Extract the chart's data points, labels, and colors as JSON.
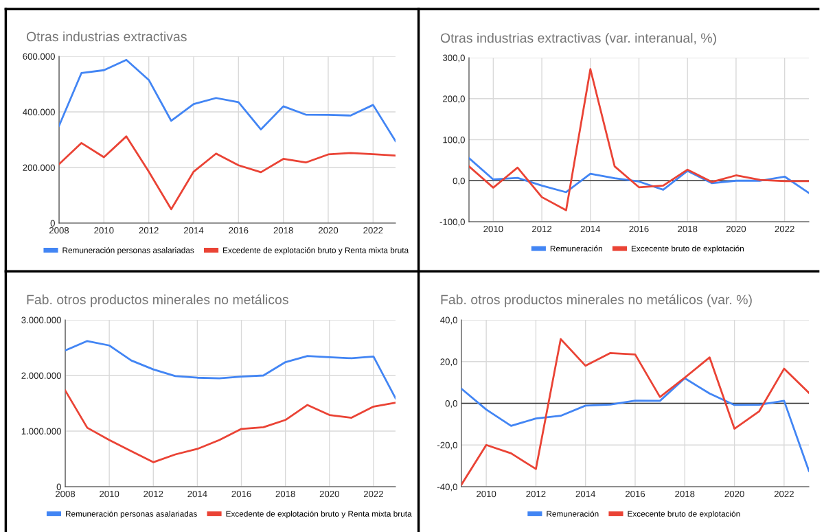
{
  "chart_data": [
    {
      "type": "line",
      "title": "Otras industrias extractivas",
      "x": [
        2008,
        2009,
        2010,
        2011,
        2012,
        2013,
        2014,
        2015,
        2016,
        2017,
        2018,
        2019,
        2020,
        2021,
        2022,
        2023
      ],
      "series": [
        {
          "name": "Remuneración personas asalariadas",
          "color": "#4285f4",
          "values": [
            350000,
            540000,
            550000,
            587000,
            515000,
            368000,
            428000,
            450000,
            435000,
            337000,
            420000,
            390000,
            389000,
            387000,
            425000,
            295000
          ]
        },
        {
          "name": "Excedente de explotación bruto y Renta mixta bruta",
          "color": "#ea4335",
          "values": [
            212000,
            288000,
            237000,
            312000,
            185000,
            50000,
            185000,
            250000,
            208000,
            183000,
            231000,
            218000,
            247000,
            252000,
            248000,
            243000
          ]
        }
      ],
      "xlim": [
        2008,
        2023
      ],
      "xticks": [
        2008,
        2010,
        2012,
        2014,
        2016,
        2018,
        2020,
        2022
      ],
      "ylim": [
        0,
        600000
      ],
      "yticks": [
        0,
        {
          "value": 200000,
          "label": "200.000"
        },
        {
          "value": 400000,
          "label": "400.000"
        },
        {
          "value": 600000,
          "label": "600.000"
        }
      ],
      "grid": true,
      "legend": "bottom"
    },
    {
      "type": "line",
      "title": "Otras industrias extractivas (var. interanual, %)",
      "x": [
        2009,
        2010,
        2011,
        2012,
        2013,
        2014,
        2015,
        2016,
        2017,
        2018,
        2019,
        2020,
        2021,
        2022,
        2023
      ],
      "series": [
        {
          "name": "Remuneración",
          "color": "#4285f4",
          "values": [
            55,
            3,
            7,
            -12,
            -28,
            17,
            6,
            -2,
            -22,
            24,
            -6,
            0,
            0,
            10,
            -30
          ]
        },
        {
          "name": "Excecente bruto de explotación",
          "color": "#ea4335",
          "values": [
            35,
            -17,
            32,
            -40,
            -72,
            272,
            35,
            -16,
            -12,
            27,
            -3,
            13,
            2,
            -1,
            -1
          ]
        }
      ],
      "xlim": [
        2009,
        2023
      ],
      "xticks": [
        2010,
        2012,
        2014,
        2016,
        2018,
        2020,
        2022
      ],
      "ylim": [
        -100,
        300
      ],
      "yticks": [
        {
          "value": -100,
          "label": "-100,0"
        },
        {
          "value": 0,
          "label": "0,0"
        },
        {
          "value": 100,
          "label": "100,0"
        },
        {
          "value": 200,
          "label": "200,0"
        },
        {
          "value": 300,
          "label": "300,0"
        }
      ],
      "ref_lines": [
        {
          "axis": "y",
          "value": 0,
          "color": "#333333"
        }
      ],
      "grid": true,
      "legend": "bottom"
    },
    {
      "type": "line",
      "title": "Fab. otros productos minerales no metálicos",
      "x": [
        2008,
        2009,
        2010,
        2011,
        2012,
        2013,
        2014,
        2015,
        2016,
        2017,
        2018,
        2019,
        2020,
        2021,
        2022,
        2023
      ],
      "series": [
        {
          "name": "Remuneración personas asalariadas",
          "color": "#4285f4",
          "values": [
            2450000,
            2620000,
            2540000,
            2270000,
            2110000,
            1990000,
            1960000,
            1950000,
            1980000,
            2000000,
            2240000,
            2350000,
            2330000,
            2310000,
            2340000,
            1590000
          ]
        },
        {
          "name": "Excedente de explotación bruto y Renta mixta bruta",
          "color": "#ea4335",
          "values": [
            1730000,
            1060000,
            840000,
            640000,
            440000,
            580000,
            680000,
            840000,
            1040000,
            1070000,
            1200000,
            1470000,
            1290000,
            1240000,
            1440000,
            1510000
          ]
        }
      ],
      "xlim": [
        2008,
        2023
      ],
      "xticks": [
        2008,
        2010,
        2012,
        2014,
        2016,
        2018,
        2020,
        2022
      ],
      "ylim": [
        0,
        3000000
      ],
      "yticks": [
        0,
        {
          "value": 1000000,
          "label": "1.000.000"
        },
        {
          "value": 2000000,
          "label": "2.000.000"
        },
        {
          "value": 3000000,
          "label": "3.000.000"
        }
      ],
      "grid": true,
      "legend": "bottom"
    },
    {
      "type": "line",
      "title": "Fab. otros productos minerales no metálicos (var. %)",
      "x": [
        2009,
        2010,
        2011,
        2012,
        2013,
        2014,
        2015,
        2016,
        2017,
        2018,
        2019,
        2020,
        2021,
        2022,
        2023
      ],
      "series": [
        {
          "name": "Remuneración",
          "color": "#4285f4",
          "values": [
            7,
            -3,
            -10.8,
            -7.3,
            -6,
            -1.1,
            -0.6,
            1.3,
            1.2,
            12,
            4.7,
            -0.8,
            -0.7,
            1.2,
            -32.4
          ]
        },
        {
          "name": "Excecente bruto de explotación",
          "color": "#ea4335",
          "values": [
            -39,
            -20,
            -24,
            -31.5,
            30.8,
            18,
            24.1,
            23.4,
            3,
            12.3,
            22,
            -12.2,
            -3.8,
            16.6,
            5
          ]
        }
      ],
      "xlim": [
        2009,
        2023
      ],
      "xticks": [
        2010,
        2012,
        2014,
        2016,
        2018,
        2020,
        2022
      ],
      "ylim": [
        -40,
        40
      ],
      "yticks": [
        {
          "value": -40,
          "label": "-40,0"
        },
        {
          "value": -20,
          "label": "-20,0"
        },
        {
          "value": 0,
          "label": "0,0"
        },
        {
          "value": 20,
          "label": "20,0"
        },
        {
          "value": 40,
          "label": "40,0"
        }
      ],
      "ref_lines": [
        {
          "axis": "y",
          "value": 0,
          "color": "#333333"
        }
      ],
      "grid": true,
      "legend": "bottom"
    }
  ]
}
